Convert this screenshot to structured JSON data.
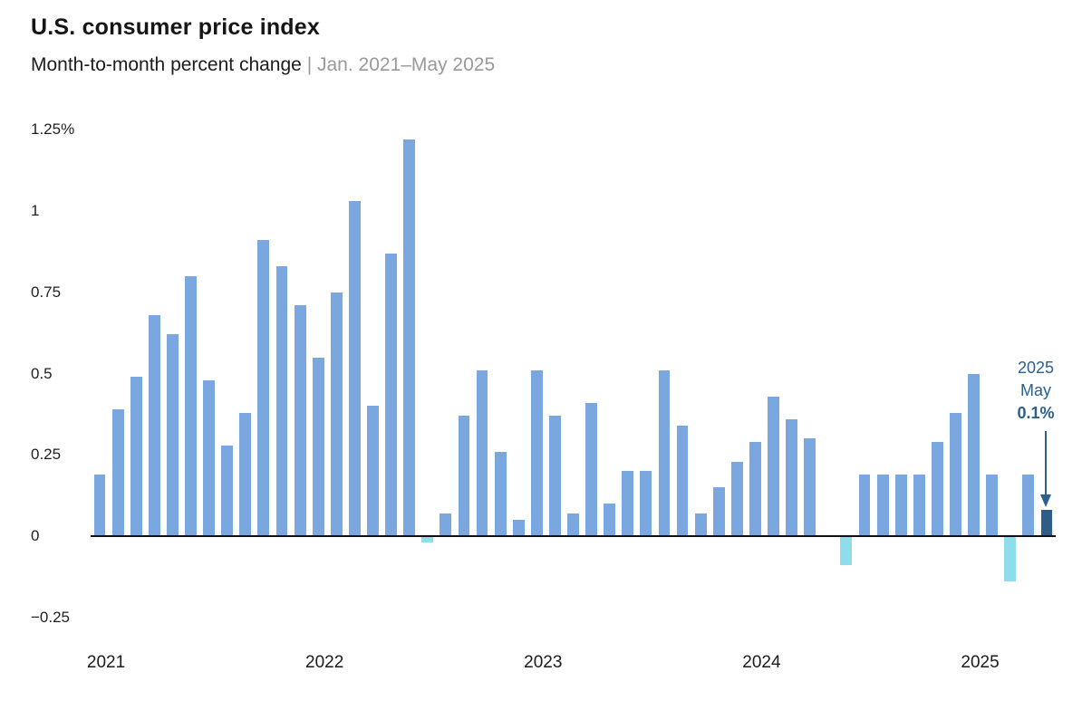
{
  "header": {
    "title": "U.S. consumer price index",
    "subtitle_main": "Month-to-month percent change",
    "subtitle_sep": "|",
    "subtitle_range": "Jan. 2021–May 2025"
  },
  "annotation": {
    "year": "2025",
    "month": "May",
    "value": "0.1%"
  },
  "colors": {
    "bar_positive": "#7ba7e0",
    "bar_negative": "#8eddea",
    "bar_highlight": "#2e5d87",
    "annotation_blue": "#2b608f",
    "zero_line": "#111111",
    "subtitle_muted": "#98999b"
  },
  "chart_data": {
    "type": "bar",
    "title": "U.S. consumer price index",
    "subtitle": "Month-to-month percent change",
    "date_range": "Jan. 2021–May 2025",
    "unit": "percent",
    "grid": false,
    "ylim": [
      -0.25,
      1.25
    ],
    "yticks": [
      {
        "value": 1.25,
        "label": "1.25%"
      },
      {
        "value": 1,
        "label": "1"
      },
      {
        "value": 0.75,
        "label": "0.75"
      },
      {
        "value": 0.5,
        "label": "0.5"
      },
      {
        "value": 0.25,
        "label": "0.25"
      },
      {
        "value": 0,
        "label": "0"
      },
      {
        "value": -0.25,
        "label": "−0.25"
      }
    ],
    "x_year_ticks": [
      "2021",
      "2022",
      "2023",
      "2024",
      "2025"
    ],
    "highlight": {
      "month": "May 2025",
      "label": "2025 May",
      "value_label": "0.1%",
      "value": 0.08
    },
    "points": [
      {
        "m": "Jan 2021",
        "v": 0.19
      },
      {
        "m": "Feb 2021",
        "v": 0.39
      },
      {
        "m": "Mar 2021",
        "v": 0.49
      },
      {
        "m": "Apr 2021",
        "v": 0.68
      },
      {
        "m": "May 2021",
        "v": 0.62
      },
      {
        "m": "Jun 2021",
        "v": 0.8
      },
      {
        "m": "Jul 2021",
        "v": 0.48
      },
      {
        "m": "Aug 2021",
        "v": 0.28
      },
      {
        "m": "Sep 2021",
        "v": 0.38
      },
      {
        "m": "Oct 2021",
        "v": 0.91
      },
      {
        "m": "Nov 2021",
        "v": 0.83
      },
      {
        "m": "Dec 2021",
        "v": 0.71
      },
      {
        "m": "Jan 2022",
        "v": 0.55
      },
      {
        "m": "Feb 2022",
        "v": 0.75
      },
      {
        "m": "Mar 2022",
        "v": 1.03
      },
      {
        "m": "Apr 2022",
        "v": 0.4
      },
      {
        "m": "May 2022",
        "v": 0.87
      },
      {
        "m": "Jun 2022",
        "v": 1.22
      },
      {
        "m": "Jul 2022",
        "v": -0.02
      },
      {
        "m": "Aug 2022",
        "v": 0.07
      },
      {
        "m": "Sep 2022",
        "v": 0.37
      },
      {
        "m": "Oct 2022",
        "v": 0.51
      },
      {
        "m": "Nov 2022",
        "v": 0.26
      },
      {
        "m": "Dec 2022",
        "v": 0.05
      },
      {
        "m": "Jan 2023",
        "v": 0.51
      },
      {
        "m": "Feb 2023",
        "v": 0.37
      },
      {
        "m": "Mar 2023",
        "v": 0.07
      },
      {
        "m": "Apr 2023",
        "v": 0.41
      },
      {
        "m": "May 2023",
        "v": 0.1
      },
      {
        "m": "Jun 2023",
        "v": 0.2
      },
      {
        "m": "Jul 2023",
        "v": 0.2
      },
      {
        "m": "Aug 2023",
        "v": 0.51
      },
      {
        "m": "Sep 2023",
        "v": 0.34
      },
      {
        "m": "Oct 2023",
        "v": 0.07
      },
      {
        "m": "Nov 2023",
        "v": 0.15
      },
      {
        "m": "Dec 2023",
        "v": 0.23
      },
      {
        "m": "Jan 2024",
        "v": 0.29
      },
      {
        "m": "Feb 2024",
        "v": 0.43
      },
      {
        "m": "Mar 2024",
        "v": 0.36
      },
      {
        "m": "Apr 2024",
        "v": 0.3
      },
      {
        "m": "May 2024",
        "v": 0.0
      },
      {
        "m": "Jun 2024",
        "v": -0.09
      },
      {
        "m": "Jul 2024",
        "v": 0.19
      },
      {
        "m": "Aug 2024",
        "v": 0.19
      },
      {
        "m": "Sep 2024",
        "v": 0.19
      },
      {
        "m": "Oct 2024",
        "v": 0.19
      },
      {
        "m": "Nov 2024",
        "v": 0.29
      },
      {
        "m": "Dec 2024",
        "v": 0.38
      },
      {
        "m": "Jan 2025",
        "v": 0.5
      },
      {
        "m": "Feb 2025",
        "v": 0.19
      },
      {
        "m": "Mar 2025",
        "v": -0.14
      },
      {
        "m": "Apr 2025",
        "v": 0.19
      },
      {
        "m": "May 2025",
        "v": 0.08,
        "highlight": true
      }
    ]
  }
}
